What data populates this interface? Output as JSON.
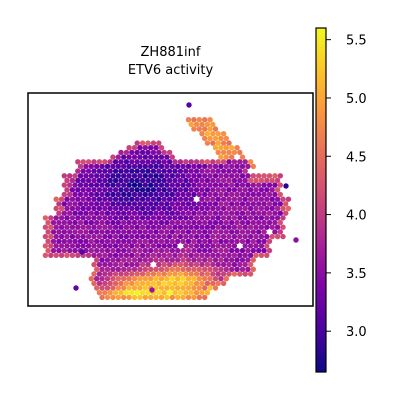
{
  "chart_data": {
    "type": "scatter",
    "title_lines": [
      "ZH881inf",
      "ETV6 activity"
    ],
    "xlabel": "",
    "ylabel": "",
    "grid": false,
    "colormap": "plasma",
    "colorbar": {
      "vmin": 2.65,
      "vmax": 5.6,
      "ticks": [
        3.0,
        3.5,
        4.0,
        4.5,
        5.0,
        5.5
      ],
      "tick_labels": [
        "3.0",
        "3.5",
        "4.0",
        "4.5",
        "5.0",
        "5.5"
      ]
    },
    "value_regions": [
      {
        "region": "upper-left tissue core",
        "approx_value": 3.2
      },
      {
        "region": "center tissue",
        "approx_value": 3.6
      },
      {
        "region": "bottom-center tissue",
        "approx_value": 4.9
      },
      {
        "region": "upper-right appendage",
        "approx_value": 4.8
      },
      {
        "region": "tissue border spots",
        "approx_value": 4.2
      }
    ]
  },
  "colors": {
    "axes_frame": "#000000",
    "background": "#ffffff"
  }
}
